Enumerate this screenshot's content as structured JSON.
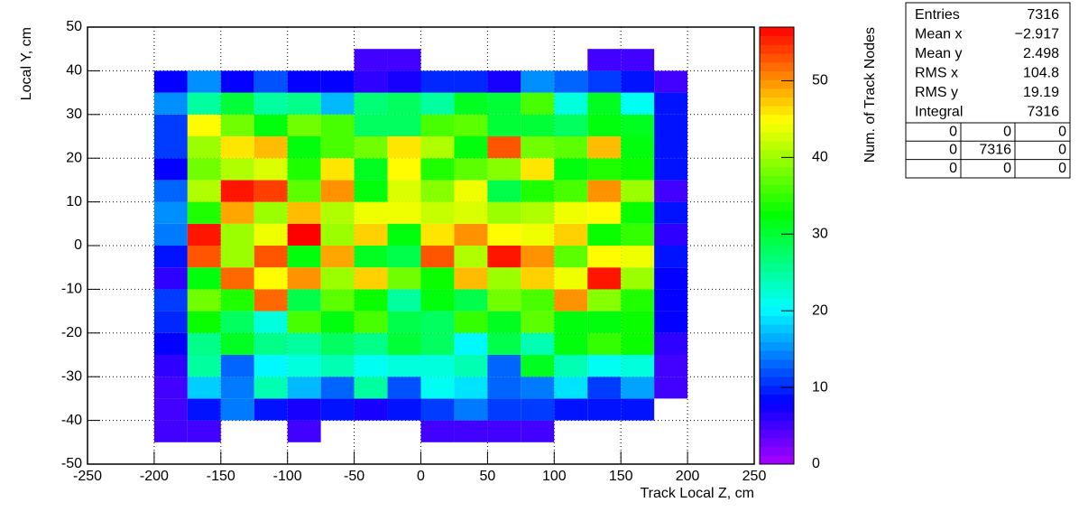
{
  "chart_data": {
    "type": "heatmap",
    "xlabel": "Track Local Z, cm",
    "ylabel": "Local Y, cm",
    "zlabel": "Num. of Track Nodes",
    "xlim": [
      -250,
      250
    ],
    "xticks": [
      -250,
      -200,
      -150,
      -100,
      -50,
      0,
      50,
      100,
      150,
      200,
      250
    ],
    "ylim": [
      -50,
      50
    ],
    "yticks": [
      -50,
      -40,
      -30,
      -20,
      -10,
      0,
      10,
      20,
      30,
      40,
      50
    ],
    "zlim": [
      0,
      57
    ],
    "zticks": [
      0,
      10,
      20,
      30,
      40,
      50
    ],
    "grid": true,
    "xbins": [
      -200,
      -175,
      -150,
      -125,
      -100,
      -75,
      -50,
      -25,
      0,
      25,
      50,
      75,
      100,
      125,
      150,
      175,
      200
    ],
    "ybins": [
      -45,
      -40,
      -35,
      -30,
      -25,
      -20,
      -15,
      -10,
      -5,
      0,
      5,
      10,
      15,
      20,
      25,
      30,
      35,
      40,
      45
    ],
    "z": [
      [
        5,
        5,
        0,
        0,
        5,
        0,
        0,
        0,
        5,
        5,
        5,
        5,
        0,
        0,
        0,
        0
      ],
      [
        5,
        9,
        14,
        9,
        7,
        9,
        7,
        9,
        11,
        14,
        11,
        11,
        9,
        9,
        9,
        0
      ],
      [
        5,
        18,
        14,
        24,
        17,
        13,
        25,
        12,
        21,
        19,
        13,
        14,
        19,
        11,
        16,
        5
      ],
      [
        6,
        25,
        13,
        20,
        22,
        24,
        21,
        22,
        22,
        24,
        13,
        31,
        24,
        21,
        22,
        5
      ],
      [
        8,
        26,
        31,
        26,
        25,
        28,
        26,
        30,
        28,
        20,
        29,
        24,
        32,
        35,
        33,
        6
      ],
      [
        10,
        33,
        28,
        22,
        36,
        32,
        36,
        29,
        28,
        35,
        31,
        37,
        32,
        32,
        33,
        8
      ],
      [
        11,
        38,
        34,
        52,
        29,
        37,
        33,
        25,
        32,
        29,
        38,
        36,
        50,
        39,
        34,
        8
      ],
      [
        6,
        32,
        52,
        45,
        50,
        40,
        47,
        38,
        33,
        48,
        40,
        47,
        44,
        56,
        40,
        8
      ],
      [
        9,
        53,
        40,
        53,
        32,
        49,
        31,
        29,
        53,
        41,
        56,
        50,
        37,
        45,
        44,
        9
      ],
      [
        14,
        56,
        40,
        44,
        57,
        40,
        47,
        32,
        46,
        50,
        45,
        44,
        47,
        33,
        35,
        6
      ],
      [
        15,
        34,
        49,
        40,
        48,
        41,
        44,
        44,
        42,
        43,
        40,
        41,
        44,
        45,
        33,
        9
      ],
      [
        13,
        41,
        56,
        54,
        37,
        50,
        32,
        43,
        39,
        44,
        29,
        34,
        36,
        50,
        40,
        5
      ],
      [
        8,
        38,
        41,
        43,
        34,
        46,
        31,
        45,
        34,
        37,
        39,
        46,
        32,
        34,
        33,
        9
      ],
      [
        11,
        40,
        46,
        48,
        32,
        36,
        38,
        46,
        41,
        32,
        53,
        38,
        37,
        48,
        32,
        9
      ],
      [
        11,
        45,
        38,
        32,
        38,
        36,
        28,
        28,
        36,
        37,
        30,
        30,
        28,
        32,
        31,
        9
      ],
      [
        15,
        25,
        30,
        25,
        26,
        17,
        27,
        28,
        25,
        31,
        30,
        36,
        22,
        31,
        21,
        9
      ],
      [
        8,
        15,
        8,
        12,
        8,
        8,
        6,
        7,
        10,
        10,
        7,
        15,
        13,
        11,
        9,
        5
      ],
      [
        0,
        0,
        0,
        0,
        0,
        0,
        5,
        5,
        0,
        0,
        0,
        0,
        0,
        5,
        5,
        0
      ]
    ],
    "stats": {
      "rows": [
        [
          "Entries",
          "7316"
        ],
        [
          "Mean x",
          "−2.917"
        ],
        [
          "Mean y",
          "2.498"
        ],
        [
          "RMS x",
          "104.8"
        ],
        [
          "RMS y",
          "19.19"
        ],
        [
          "Integral",
          "7316"
        ]
      ],
      "table": [
        [
          "0",
          "0",
          "0"
        ],
        [
          "0",
          "7316",
          "0"
        ],
        [
          "0",
          "0",
          "0"
        ]
      ]
    }
  }
}
